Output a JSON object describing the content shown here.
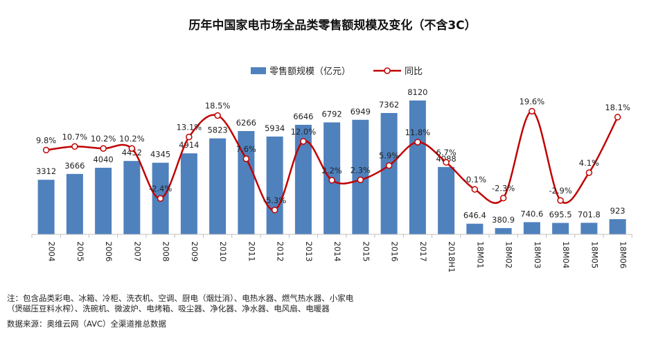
{
  "chart_data": {
    "type": "bar",
    "title": "历年中国家电市场全品类零售额规模及变化（不含3C）",
    "categories": [
      "2004",
      "2005",
      "2006",
      "2007",
      "2008",
      "2009",
      "2010",
      "2011",
      "2012",
      "2013",
      "2014",
      "2015",
      "2016",
      "2017",
      "2018H1",
      "18M01",
      "18M02",
      "18M03",
      "18M04",
      "18M05",
      "18M06"
    ],
    "series": [
      {
        "name": "零售额规模（亿元）",
        "type": "bar",
        "color": "#4f81bd",
        "values": [
          3312,
          3666,
          4040,
          4452,
          4345,
          4914,
          5823,
          6266,
          5934,
          6646,
          6792,
          6949,
          7362,
          8120,
          4088,
          646.4,
          380.9,
          740.6,
          695.5,
          701.8,
          923
        ],
        "labels": [
          "3312",
          "3666",
          "4040",
          "4452",
          "4345",
          "4914",
          "5823",
          "6266",
          "5934",
          "6646",
          "6792",
          "6949",
          "7362",
          "8120",
          "4088",
          "646.4",
          "380.9",
          "740.6",
          "695.5",
          "701.8",
          "923"
        ]
      },
      {
        "name": "同比",
        "type": "line",
        "color": "#c00000",
        "values": [
          9.8,
          10.7,
          10.2,
          10.2,
          -2.4,
          13.1,
          18.5,
          7.6,
          -5.3,
          12.0,
          2.2,
          2.3,
          5.9,
          11.8,
          6.7,
          -0.1,
          -2.3,
          19.6,
          -2.9,
          4.1,
          18.1
        ],
        "labels": [
          "9.8%",
          "10.7%",
          "10.2%",
          "10.2%",
          "-2.4%",
          "13.1%",
          "18.5%",
          "7.6%",
          "-5.3%",
          "12.0%",
          "2.2%",
          "2.3%",
          "5.9%",
          "11.8%",
          "6.7%",
          "-0.1%",
          "-2.3%",
          "19.6%",
          "-2.9%",
          "4.1%",
          "18.1%"
        ]
      }
    ],
    "bar_range": [
      0,
      9000
    ],
    "line_range": [
      -9,
      27
    ],
    "legend_position": "top-center",
    "grid": false
  },
  "notes": {
    "line1": "注：包含品类彩电、冰箱、冷柜、洗衣机、空调、厨电（烟灶消）、电热水器、燃气热水器、小家电",
    "line2": "（煲磁压豆料水榨）、洗碗机、微波炉、电烤箱、吸尘器、净化器、净水器、电风扇、电暖器",
    "source": "数据来源：奥维云网（AVC）全渠道推总数据"
  }
}
